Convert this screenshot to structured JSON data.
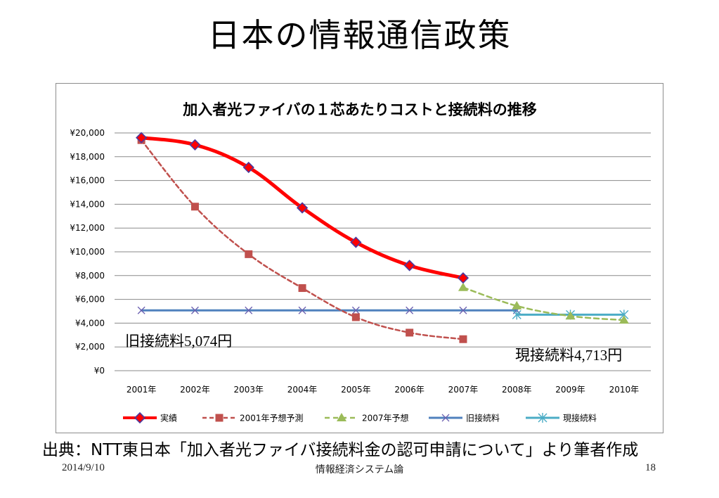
{
  "slide": {
    "title": "日本の情報通信政策",
    "source": "出典：NTT東日本「加入者光ファイバ接続料金の認可申請について」より筆者作成",
    "footer_date": "2014/9/10",
    "footer_center": "情報経済システム論",
    "page_number": "18"
  },
  "annotations": {
    "old_fee": "旧接続料5,074円",
    "new_fee": "現接続料4,713円"
  },
  "chart_data": {
    "type": "line",
    "title": "加入者光ファイバの１芯あたりコストと接続料の推移",
    "categories": [
      "2001年",
      "2002年",
      "2003年",
      "2004年",
      "2005年",
      "2006年",
      "2007年",
      "2008年",
      "2009年",
      "2010年"
    ],
    "y_tick_labels": [
      "¥0",
      "¥2,000",
      "¥4,000",
      "¥6,000",
      "¥8,000",
      "¥10,000",
      "¥12,000",
      "¥14,000",
      "¥16,000",
      "¥18,000",
      "¥20,000"
    ],
    "ylim": [
      0,
      20000
    ],
    "grid": true,
    "legend_position": "bottom",
    "series": [
      {
        "name": "実績",
        "color": "#ff0000",
        "marker": "diamond",
        "values": [
          19600,
          19000,
          17100,
          13700,
          10800,
          8850,
          7800,
          null,
          null,
          null
        ]
      },
      {
        "name": "2001年予想予測",
        "color": "#c0504d",
        "marker": "square",
        "values": [
          19400,
          13800,
          9800,
          6950,
          4500,
          3200,
          2650,
          null,
          null,
          null
        ]
      },
      {
        "name": "2007年予想",
        "color": "#9bbb59",
        "marker": "triangle",
        "values": [
          null,
          null,
          null,
          null,
          null,
          null,
          7000,
          5450,
          4600,
          4250
        ]
      },
      {
        "name": "旧接続料",
        "color": "#4f81bd",
        "marker": "x",
        "values": [
          5074,
          5074,
          5074,
          5074,
          5074,
          5074,
          5074,
          5074,
          null,
          null
        ]
      },
      {
        "name": "現接続料",
        "color": "#4bacc6",
        "marker": "star",
        "values": [
          null,
          null,
          null,
          null,
          null,
          null,
          null,
          4713,
          4713,
          4713
        ]
      }
    ]
  }
}
